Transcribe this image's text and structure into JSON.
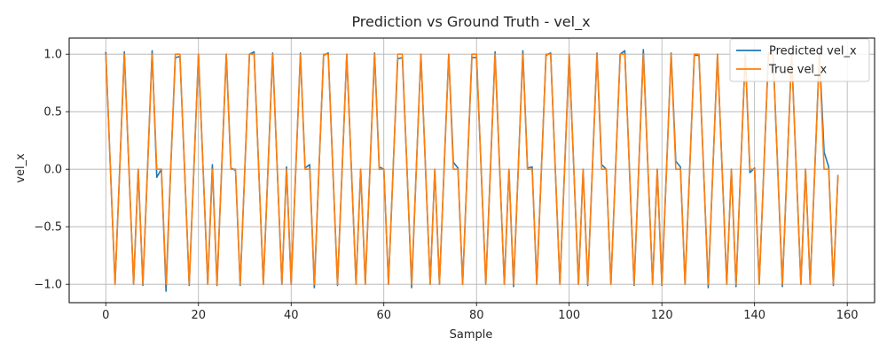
{
  "chart_data": {
    "type": "line",
    "title": "Prediction vs Ground Truth - vel_x",
    "xlabel": "Sample",
    "ylabel": "vel_x",
    "xlim": [
      -7.9,
      165.9
    ],
    "ylim": [
      -1.16,
      1.14
    ],
    "xticks": [
      0,
      20,
      40,
      60,
      80,
      100,
      120,
      140,
      160
    ],
    "yticks": [
      -1.0,
      -0.5,
      0.0,
      0.5,
      1.0
    ],
    "xtick_labels": [
      "0",
      "20",
      "40",
      "60",
      "80",
      "100",
      "120",
      "140",
      "160"
    ],
    "ytick_labels": [
      "−1.0",
      "−0.5",
      "0.0",
      "0.5",
      "1.0"
    ],
    "grid": true,
    "legend_position": "top-right",
    "series": [
      {
        "name": "Predicted vel_x",
        "color": "#1f77b4",
        "values": [
          1.02,
          0.0,
          -1.0,
          0.0,
          1.02,
          0.0,
          -1.0,
          0.0,
          -1.01,
          0.0,
          1.03,
          -0.07,
          0.0,
          -1.06,
          0.0,
          0.97,
          0.98,
          0.0,
          -1.01,
          0.0,
          1.0,
          0.0,
          -1.0,
          0.04,
          -1.01,
          0.0,
          1.0,
          0.01,
          -0.01,
          -1.01,
          0.0,
          1.0,
          1.02,
          0.0,
          -1.0,
          0.0,
          1.01,
          0.0,
          -1.0,
          0.02,
          -1.0,
          0.0,
          1.01,
          0.01,
          0.04,
          -1.03,
          0.0,
          0.99,
          1.01,
          0.0,
          -1.01,
          0.0,
          1.0,
          0.0,
          -1.0,
          0.0,
          -1.0,
          0.0,
          1.01,
          0.02,
          0.0,
          -1.0,
          0.0,
          0.96,
          0.97,
          0.0,
          -1.03,
          0.0,
          1.0,
          0.0,
          -1.0,
          0.0,
          -1.0,
          0.0,
          1.0,
          0.06,
          0.01,
          -1.0,
          0.0,
          0.97,
          0.97,
          0.0,
          -1.0,
          0.0,
          1.02,
          0.0,
          -1.0,
          0.0,
          -1.02,
          0.0,
          1.03,
          0.01,
          0.02,
          -1.0,
          0.0,
          0.99,
          1.01,
          0.0,
          -1.0,
          0.0,
          1.0,
          0.0,
          -1.0,
          0.0,
          -1.01,
          0.0,
          1.01,
          0.04,
          0.0,
          -1.0,
          0.0,
          1.0,
          1.03,
          0.0,
          -1.01,
          0.0,
          1.04,
          0.0,
          -1.0,
          0.0,
          -1.01,
          0.0,
          1.01,
          0.07,
          0.02,
          -1.0,
          0.0,
          0.99,
          0.99,
          0.0,
          -1.03,
          0.0,
          1.0,
          0.0,
          -1.0,
          0.0,
          -1.02,
          0.0,
          1.0,
          -0.03,
          0.01,
          -1.0,
          0.0,
          1.01,
          1.0,
          0.0,
          -1.02,
          0.0,
          1.0,
          0.0,
          -1.0,
          0.0,
          -1.0,
          0.0,
          1.02,
          0.15,
          0.02,
          -1.01,
          -0.05
        ]
      },
      {
        "name": "True vel_x",
        "color": "#ff7f0e",
        "values": [
          1.0,
          0.0,
          -1.0,
          0.0,
          1.0,
          0.0,
          -1.0,
          0.0,
          -1.0,
          0.0,
          1.0,
          0.0,
          0.0,
          -1.0,
          0.0,
          1.0,
          1.0,
          0.0,
          -1.0,
          0.0,
          1.0,
          0.0,
          -1.0,
          0.0,
          -1.0,
          0.0,
          1.0,
          0.0,
          0.0,
          -1.0,
          0.0,
          1.0,
          1.0,
          0.0,
          -1.0,
          0.0,
          1.0,
          0.0,
          -1.0,
          0.0,
          -1.0,
          0.0,
          1.0,
          0.0,
          0.0,
          -1.0,
          0.0,
          1.0,
          1.0,
          0.0,
          -1.0,
          0.0,
          1.0,
          0.0,
          -1.0,
          0.0,
          -1.0,
          0.0,
          1.0,
          0.0,
          0.0,
          -1.0,
          0.0,
          1.0,
          1.0,
          0.0,
          -1.0,
          0.0,
          1.0,
          0.0,
          -1.0,
          0.0,
          -1.0,
          0.0,
          1.0,
          0.0,
          0.0,
          -1.0,
          0.0,
          1.0,
          1.0,
          0.0,
          -1.0,
          0.0,
          1.0,
          0.0,
          -1.0,
          0.0,
          -1.0,
          0.0,
          1.0,
          0.0,
          0.0,
          -1.0,
          0.0,
          1.0,
          1.0,
          0.0,
          -1.0,
          0.0,
          1.0,
          0.0,
          -1.0,
          0.0,
          -1.0,
          0.0,
          1.0,
          0.0,
          0.0,
          -1.0,
          0.0,
          1.0,
          1.0,
          0.0,
          -1.0,
          0.0,
          1.0,
          0.0,
          -1.0,
          0.0,
          -1.0,
          0.0,
          1.0,
          0.0,
          0.0,
          -1.0,
          0.0,
          1.0,
          1.0,
          0.0,
          -1.0,
          0.0,
          1.0,
          0.0,
          -1.0,
          0.0,
          -1.0,
          0.0,
          1.0,
          0.0,
          0.0,
          -1.0,
          0.0,
          1.0,
          1.0,
          0.0,
          -1.0,
          0.0,
          1.0,
          0.0,
          -1.0,
          0.0,
          -1.0,
          0.0,
          1.0,
          0.0,
          0.0,
          -1.0,
          -0.05
        ]
      }
    ]
  }
}
